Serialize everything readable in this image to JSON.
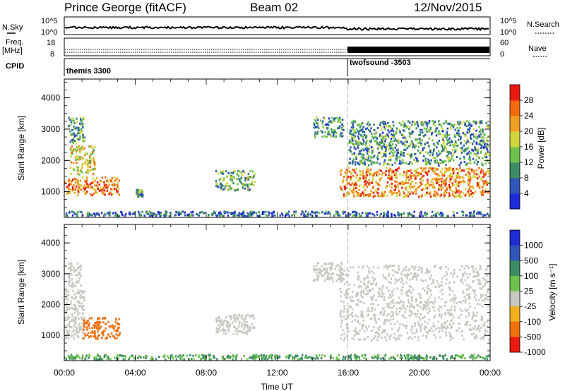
{
  "header": {
    "station": "Prince George (fitACF)",
    "beam": "Beam 02",
    "date": "12/Nov/2015"
  },
  "strip_panels": {
    "nsky": {
      "label": "N.Sky",
      "right_label": "N.Search",
      "left_ticks": [
        "10^5",
        "10^0"
      ],
      "right_ticks": [
        "10^5",
        "10^0"
      ]
    },
    "freq": {
      "label_line1": "Freq.",
      "label_line2": "[MHz]",
      "left_ticks": [
        "18",
        "8"
      ],
      "right_ticks": [
        "60",
        "0"
      ],
      "right_label": "Nave"
    },
    "cpid": {
      "label": "CPID",
      "segments": [
        {
          "name": "themis 3300",
          "start_hour": 0
        },
        {
          "name": "twofsound -3503",
          "start_hour": 16
        }
      ]
    }
  },
  "chart_data": [
    {
      "type": "heatmap",
      "name": "power-panel",
      "ylabel": "Slant Range [km]",
      "xlim": [
        0,
        24
      ],
      "ylim": [
        180,
        4600
      ],
      "yticks": [
        "1000",
        "2000",
        "3000",
        "4000"
      ],
      "ytick_values": [
        1000,
        2000,
        3000,
        4000
      ],
      "colorbar": {
        "label": "Power [dB]",
        "ticks": [
          "4",
          "8",
          "12",
          "16",
          "20",
          "24",
          "28"
        ],
        "range": [
          0,
          30
        ]
      },
      "regions": [
        {
          "x": [
            0.0,
            1.0
          ],
          "y": [
            850,
            1500
          ],
          "value": 22
        },
        {
          "x": [
            0.3,
            1.8
          ],
          "y": [
            1500,
            2500
          ],
          "value": 18
        },
        {
          "x": [
            0.2,
            1.2
          ],
          "y": [
            2500,
            3400
          ],
          "value": 10
        },
        {
          "x": [
            1.0,
            3.2
          ],
          "y": [
            850,
            1500
          ],
          "value": 24
        },
        {
          "x": [
            4.0,
            4.5
          ],
          "y": [
            800,
            1100
          ],
          "value": 10
        },
        {
          "x": [
            8.5,
            10.8
          ],
          "y": [
            1000,
            1700
          ],
          "value": 12
        },
        {
          "x": [
            14.0,
            15.8
          ],
          "y": [
            2700,
            3400
          ],
          "value": 10
        },
        {
          "x": [
            15.5,
            24.0
          ],
          "y": [
            800,
            1800
          ],
          "value": 22
        },
        {
          "x": [
            16.0,
            24.0
          ],
          "y": [
            1800,
            3300
          ],
          "value": 10
        },
        {
          "x": [
            0.0,
            24.0
          ],
          "y": [
            180,
            400
          ],
          "value": 6
        }
      ]
    },
    {
      "type": "heatmap",
      "name": "velocity-panel",
      "ylabel": "Slant Range [km]",
      "xlabel": "Time UT",
      "xlim": [
        0,
        24
      ],
      "ylim": [
        180,
        4600
      ],
      "xticks": [
        "00:00",
        "04:00",
        "08:00",
        "12:00",
        "16:00",
        "20:00",
        "00:00"
      ],
      "xtick_values": [
        0,
        4,
        8,
        12,
        16,
        20,
        24
      ],
      "yticks": [
        "1000",
        "2000",
        "3000",
        "4000"
      ],
      "ytick_values": [
        1000,
        2000,
        3000,
        4000
      ],
      "colorbar": {
        "label": "Velocity [m s⁻¹]",
        "ticks": [
          "1000",
          "500",
          "100",
          "25",
          "-25",
          "-100",
          "-500",
          "-1000"
        ]
      },
      "regions": [
        {
          "x": [
            0.0,
            1.2
          ],
          "y": [
            850,
            2500
          ],
          "value": 0
        },
        {
          "x": [
            1.0,
            3.2
          ],
          "y": [
            850,
            1600
          ],
          "value": -150
        },
        {
          "x": [
            0.2,
            1.0
          ],
          "y": [
            2500,
            3400
          ],
          "value": 0
        },
        {
          "x": [
            8.5,
            10.8
          ],
          "y": [
            1000,
            1700
          ],
          "value": 0
        },
        {
          "x": [
            14.0,
            15.8
          ],
          "y": [
            2700,
            3400
          ],
          "value": 0
        },
        {
          "x": [
            15.5,
            24.0
          ],
          "y": [
            800,
            3300
          ],
          "value": 0
        },
        {
          "x": [
            0.0,
            24.0
          ],
          "y": [
            180,
            400
          ],
          "value": 60
        }
      ]
    }
  ],
  "colors": {
    "power_scale": [
      "#1e2bd6",
      "#2f56b8",
      "#3c8c64",
      "#6ec24c",
      "#cfd63b",
      "#f0a020",
      "#f56a10",
      "#e81a10"
    ],
    "velocity_scale": [
      "#1e2bd6",
      "#2f56b8",
      "#3c8c64",
      "#6ec24c",
      "#c8c8c0",
      "#f0b020",
      "#f07010",
      "#e81a10"
    ],
    "ground_scatter": "#c8c8c0"
  }
}
